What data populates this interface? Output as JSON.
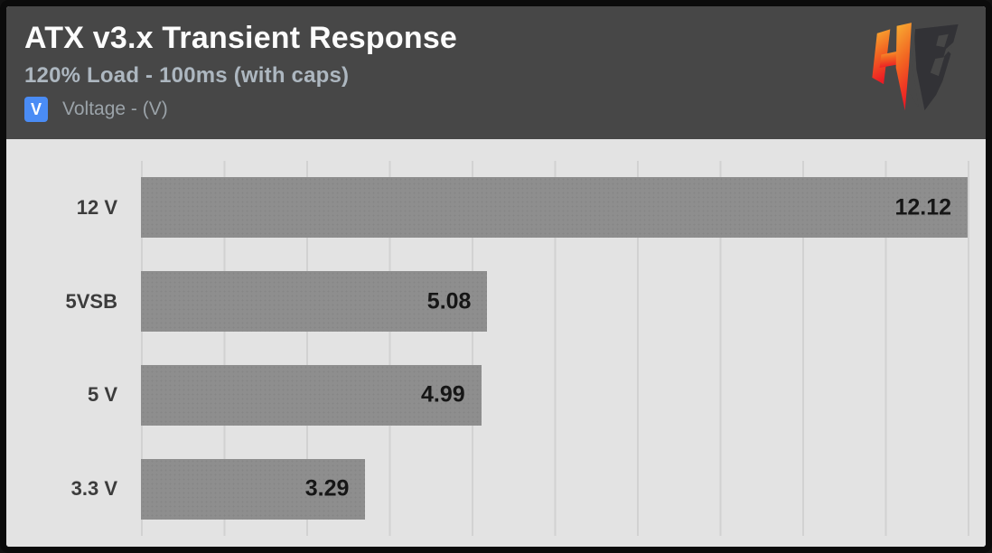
{
  "header": {
    "title": "ATX v3.x Transient Response",
    "subtitle": "120% Load - 100ms (with caps)",
    "legend": {
      "badge": "V",
      "label": "Voltage - (V)"
    },
    "logo": "hardware-busters-hb-logo"
  },
  "colors": {
    "header_bg": "#474747",
    "chart_bg": "#e3e3e3",
    "bar": "#8e8e8e",
    "gridline": "#d2d2d2",
    "legend_badge_bg": "#4a8cf5",
    "title_text": "#fcfcfc",
    "subtitle_text": "#adb7c0",
    "legend_text": "#9ba3a9",
    "category_text": "#3c3c3c",
    "value_text": "#161616",
    "frame_border": "#0b0b0b",
    "logo_gradient_top": "#f8b133",
    "logo_gradient_bottom": "#ec1c24",
    "logo_dark": "#323236"
  },
  "chart_data": {
    "type": "bar",
    "orientation": "horizontal",
    "title": "ATX v3.x Transient Response",
    "subtitle": "120% Load - 100ms (with caps)",
    "unit": "V",
    "legend": [
      "Voltage - (V)"
    ],
    "categories": [
      "12 V",
      "5VSB",
      "5 V",
      "3.3 V"
    ],
    "values": [
      12.12,
      5.08,
      4.99,
      3.29
    ],
    "value_labels": [
      "12.12",
      "5.08",
      "4.99",
      "3.29"
    ],
    "xlim": [
      0,
      12.12
    ],
    "grid": "vertical",
    "gridline_divisions": 10,
    "grid_on": true,
    "legend_position": "top-left"
  }
}
